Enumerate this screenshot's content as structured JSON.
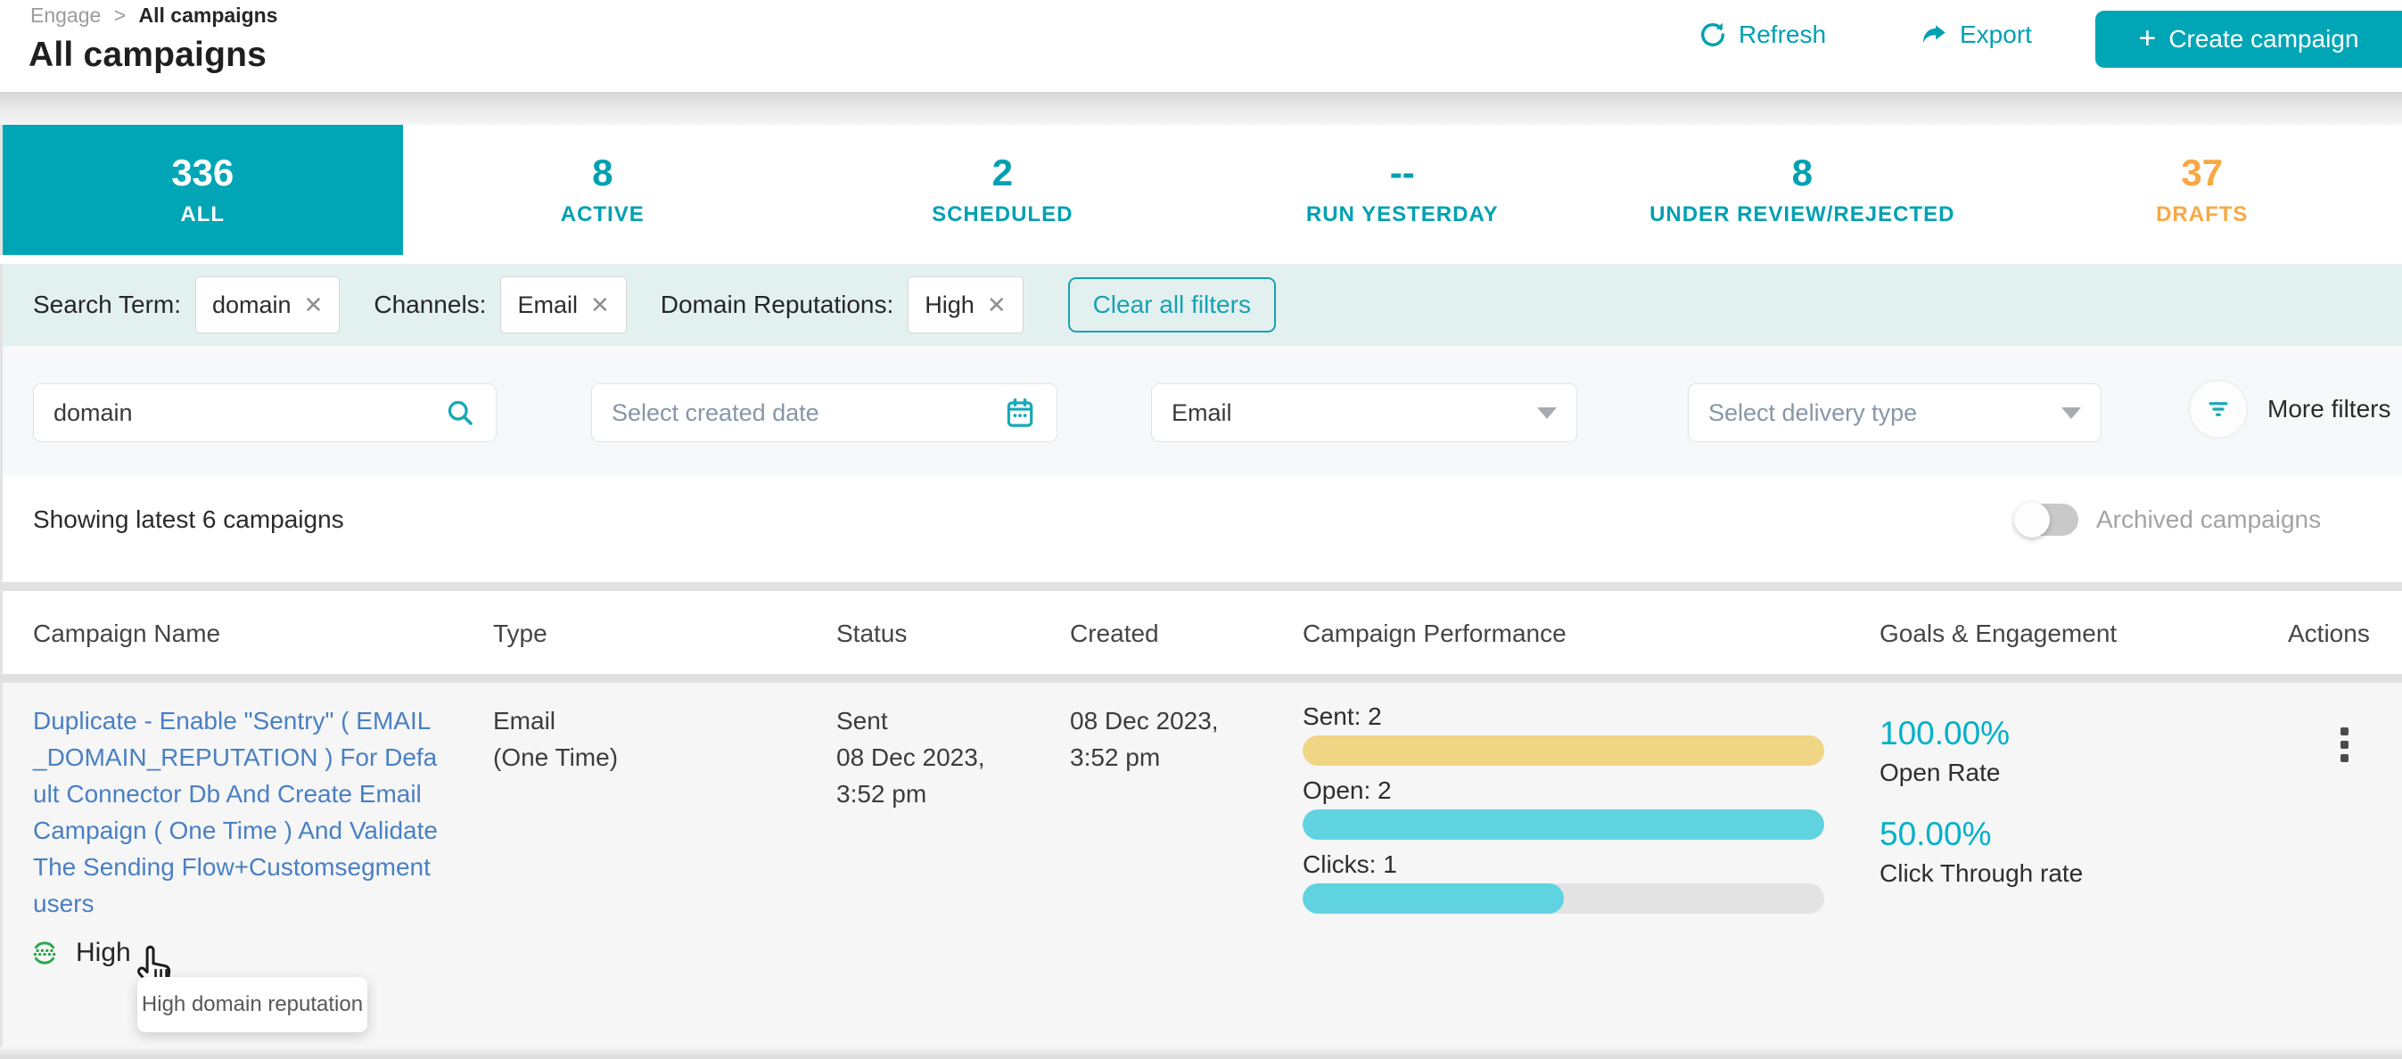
{
  "breadcrumb": {
    "parent": "Engage",
    "separator": ">",
    "current": "All campaigns"
  },
  "page_title": "All campaigns",
  "toolbar": {
    "refresh_label": "Refresh",
    "export_label": "Export",
    "create_plus": "+",
    "create_campaign_label": "Create campaign"
  },
  "tabs": [
    {
      "count": "336",
      "label": "ALL",
      "selected": true,
      "accent": "teal"
    },
    {
      "count": "8",
      "label": "ACTIVE",
      "selected": false,
      "accent": "teal"
    },
    {
      "count": "2",
      "label": "SCHEDULED",
      "selected": false,
      "accent": "teal"
    },
    {
      "count": "--",
      "label": "RUN YESTERDAY",
      "selected": false,
      "accent": "teal"
    },
    {
      "count": "8",
      "label": "UNDER REVIEW/REJECTED",
      "selected": false,
      "accent": "teal"
    },
    {
      "count": "37",
      "label": "DRAFTS",
      "selected": false,
      "accent": "orange"
    }
  ],
  "applied_filters": {
    "items": [
      {
        "label": "Search Term:",
        "value": "domain"
      },
      {
        "label": "Channels:",
        "value": "Email"
      },
      {
        "label": "Domain Reputations:",
        "value": "High"
      }
    ],
    "clear_all_label": "Clear all filters"
  },
  "filter_controls": {
    "search_value": "domain",
    "created_date_placeholder": "Select created date",
    "channel_value": "Email",
    "delivery_placeholder": "Select delivery type",
    "more_filters_label": "More filters"
  },
  "list_meta": {
    "showing_text": "Showing latest 6 campaigns",
    "archived_toggle_label": "Archived campaigns",
    "archived_on": false
  },
  "table": {
    "columns": [
      "Campaign Name",
      "Type",
      "Status",
      "Created",
      "Campaign Performance",
      "Goals & Engagement",
      "Actions"
    ],
    "row": {
      "name_lines": [
        "Duplicate - Enable \"Sentry\" ( EMAIL",
        "_DOMAIN_REPUTATION ) For Defa",
        "ult Connector Db And Create Email",
        "Campaign ( One Time ) And Validate",
        "The Sending Flow+Customsegment",
        "users"
      ],
      "type_lines": [
        "Email",
        "(One Time)"
      ],
      "status_lines": [
        "Sent",
        "08 Dec 2023,",
        "3:52 pm"
      ],
      "created_lines": [
        "08 Dec 2023,",
        "3:52 pm"
      ],
      "performance": [
        {
          "label": "Sent: 2",
          "percent": 100,
          "color": "#f0d584"
        },
        {
          "label": "Open: 2",
          "percent": 100,
          "color": "#5fd3e0"
        },
        {
          "label": "Clicks: 1",
          "percent": 50,
          "color": "#5fd3e0"
        }
      ],
      "goals": [
        {
          "value": "100.00%",
          "label": "Open Rate"
        },
        {
          "value": "50.00%",
          "label": "Click Through rate"
        }
      ],
      "reputation": {
        "label": "High",
        "tooltip": "High domain reputation"
      }
    }
  },
  "colors": {
    "brand_teal": "#00a6b6",
    "drafts_orange": "#f7a845",
    "applied_band_bg": "#e2f1ef",
    "link_blue": "#4a80c2",
    "bar_yellow": "#f0d584",
    "bar_cyan": "#5fd3e0",
    "goal_teal": "#00b1c9",
    "reputation_green": "#2ba84a"
  }
}
